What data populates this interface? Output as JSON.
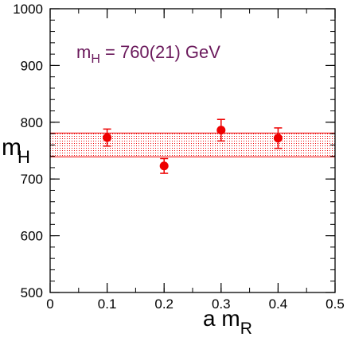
{
  "chart_data": {
    "type": "scatter",
    "xlabel": {
      "main": "a m",
      "sub": "R"
    },
    "ylabel": {
      "main": "m",
      "sub": "H"
    },
    "xlim": [
      0,
      0.5
    ],
    "ylim": [
      500,
      1000
    ],
    "x_ticks": [
      0,
      0.1,
      0.2,
      0.3,
      0.4,
      0.5
    ],
    "x_tick_labels": [
      "0",
      "0.1",
      "0.2",
      "0.3",
      "0.4",
      "0.5"
    ],
    "y_ticks": [
      500,
      600,
      700,
      800,
      900,
      1000
    ],
    "y_tick_labels": [
      "500",
      "600",
      "700",
      "800",
      "900",
      "1000"
    ],
    "x_minor_step": 0.05,
    "y_minor_step": 20,
    "grid": false,
    "points": [
      {
        "x": 0.1,
        "y": 773,
        "err": 15
      },
      {
        "x": 0.2,
        "y": 723,
        "err": 13
      },
      {
        "x": 0.3,
        "y": 786,
        "err": 19
      },
      {
        "x": 0.4,
        "y": 772,
        "err": 18
      }
    ],
    "band": {
      "lower": 739,
      "upper": 781
    },
    "annotation": {
      "prefix": "m",
      "sub": "H",
      "suffix": " = 760(21) GeV"
    },
    "colors": {
      "points": "#ee0000",
      "band_edge": "#ee0000",
      "annotation": "#6b1a5c",
      "axes": "#000000"
    }
  }
}
